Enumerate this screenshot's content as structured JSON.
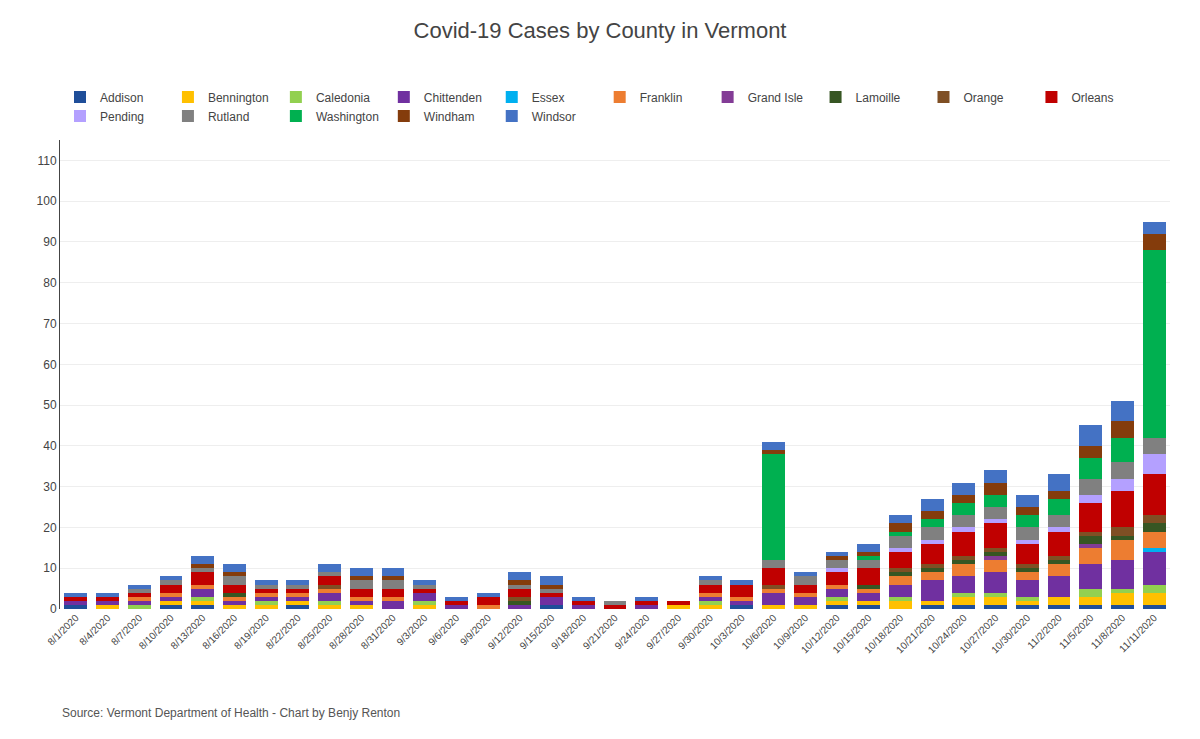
{
  "chart_data": {
    "type": "bar",
    "title": "Covid-19 Cases by County in Vermont",
    "annotations": [
      "Source: Vermont Department of Health - Chart by Benjy Renton"
    ],
    "stacked": true,
    "grid": true,
    "legend": "upper left",
    "categories": [
      "8/1/2020",
      "8/4/2020",
      "8/7/2020",
      "8/10/2020",
      "8/13/2020",
      "8/16/2020",
      "8/19/2020",
      "8/22/2020",
      "8/25/2020",
      "8/28/2020",
      "8/31/2020",
      "9/3/2020",
      "9/6/2020",
      "9/9/2020",
      "9/12/2020",
      "9/15/2020",
      "9/18/2020",
      "9/21/2020",
      "9/24/2020",
      "9/27/2020",
      "9/30/2020",
      "10/3/2020",
      "10/6/2020",
      "10/9/2020",
      "10/12/2020",
      "10/15/2020",
      "10/18/2020",
      "10/21/2020",
      "10/24/2020",
      "10/27/2020",
      "10/30/2020",
      "11/2/2020",
      "11/5/2020",
      "11/8/2020",
      "11/11/2020"
    ],
    "series": [
      {
        "name": "Addison",
        "color": "#1f4e99",
        "values": [
          1,
          0,
          0,
          1,
          1,
          0,
          0,
          1,
          0,
          0,
          0,
          0,
          0,
          0,
          0,
          1,
          0,
          0,
          0,
          0,
          0,
          1,
          0,
          0,
          1,
          1,
          0,
          1,
          1,
          1,
          1,
          1,
          1,
          1,
          1
        ]
      },
      {
        "name": "Bennington",
        "color": "#ffc000",
        "values": [
          0,
          1,
          0,
          1,
          1,
          1,
          1,
          1,
          1,
          1,
          0,
          1,
          0,
          0,
          0,
          0,
          0,
          0,
          0,
          1,
          1,
          0,
          1,
          1,
          1,
          1,
          2,
          1,
          2,
          2,
          1,
          2,
          2,
          3,
          3
        ]
      },
      {
        "name": "Caledonia",
        "color": "#92d050",
        "values": [
          0,
          0,
          1,
          0,
          1,
          0,
          1,
          0,
          1,
          0,
          0,
          1,
          0,
          0,
          0,
          0,
          0,
          0,
          0,
          0,
          1,
          0,
          0,
          0,
          1,
          0,
          1,
          0,
          1,
          1,
          1,
          0,
          2,
          1,
          2
        ]
      },
      {
        "name": "Chittenden",
        "color": "#7030a0",
        "values": [
          1,
          1,
          1,
          1,
          2,
          1,
          1,
          1,
          2,
          1,
          2,
          2,
          1,
          0,
          1,
          2,
          1,
          0,
          1,
          0,
          1,
          1,
          3,
          2,
          2,
          2,
          3,
          5,
          4,
          5,
          4,
          5,
          6,
          7,
          8
        ]
      },
      {
        "name": "Essex",
        "color": "#00b0f0",
        "values": [
          0,
          0,
          0,
          0,
          0,
          0,
          0,
          0,
          0,
          0,
          0,
          0,
          0,
          0,
          0,
          0,
          0,
          0,
          0,
          0,
          0,
          0,
          0,
          0,
          0,
          0,
          0,
          0,
          0,
          0,
          0,
          0,
          0,
          0,
          1
        ]
      },
      {
        "name": "Franklin",
        "color": "#ed7d31",
        "values": [
          0,
          0,
          1,
          1,
          1,
          1,
          1,
          1,
          1,
          1,
          1,
          0,
          0,
          1,
          0,
          0,
          0,
          0,
          0,
          0,
          1,
          1,
          1,
          1,
          1,
          1,
          2,
          2,
          3,
          3,
          2,
          3,
          4,
          5,
          4
        ]
      },
      {
        "name": "Grand Isle",
        "color": "#833c96",
        "values": [
          0,
          0,
          0,
          0,
          0,
          0,
          0,
          0,
          0,
          0,
          0,
          0,
          0,
          0,
          0,
          0,
          0,
          0,
          0,
          0,
          0,
          0,
          0,
          0,
          0,
          0,
          0,
          0,
          0,
          1,
          0,
          0,
          1,
          0,
          0
        ]
      },
      {
        "name": "Lamoille",
        "color": "#375623",
        "values": [
          0,
          0,
          0,
          0,
          0,
          1,
          0,
          0,
          0,
          0,
          0,
          0,
          0,
          0,
          1,
          0,
          0,
          0,
          0,
          0,
          0,
          0,
          0,
          0,
          0,
          1,
          1,
          1,
          1,
          1,
          1,
          1,
          2,
          1,
          2
        ]
      },
      {
        "name": "Orange",
        "color": "#7f4f24",
        "values": [
          0,
          0,
          0,
          0,
          0,
          0,
          0,
          0,
          1,
          0,
          0,
          0,
          0,
          0,
          1,
          0,
          0,
          0,
          0,
          0,
          0,
          0,
          1,
          0,
          0,
          0,
          1,
          1,
          1,
          1,
          1,
          1,
          1,
          2,
          2
        ]
      },
      {
        "name": "Orleans",
        "color": "#c00000",
        "values": [
          1,
          1,
          1,
          2,
          3,
          2,
          1,
          1,
          2,
          2,
          2,
          1,
          1,
          2,
          2,
          1,
          1,
          1,
          1,
          1,
          2,
          3,
          4,
          2,
          3,
          4,
          4,
          5,
          6,
          6,
          5,
          6,
          7,
          9,
          10
        ]
      },
      {
        "name": "Pending",
        "color": "#b4a0ff",
        "values": [
          0,
          0,
          0,
          0,
          0,
          0,
          0,
          0,
          0,
          0,
          0,
          0,
          0,
          0,
          0,
          0,
          0,
          0,
          0,
          0,
          0,
          0,
          0,
          0,
          1,
          0,
          1,
          1,
          1,
          1,
          1,
          1,
          2,
          3,
          5
        ]
      },
      {
        "name": "Rutland",
        "color": "#808080",
        "values": [
          0,
          0,
          1,
          1,
          1,
          2,
          1,
          1,
          1,
          2,
          2,
          1,
          0,
          0,
          1,
          1,
          0,
          1,
          0,
          0,
          1,
          0,
          2,
          2,
          2,
          2,
          3,
          3,
          3,
          3,
          3,
          3,
          4,
          4,
          4
        ]
      },
      {
        "name": "Washington",
        "color": "#00b050",
        "values": [
          0,
          0,
          0,
          0,
          0,
          0,
          0,
          0,
          0,
          0,
          0,
          0,
          0,
          0,
          0,
          0,
          0,
          0,
          0,
          0,
          0,
          0,
          26,
          0,
          0,
          1,
          1,
          2,
          3,
          3,
          3,
          4,
          5,
          6,
          46
        ]
      },
      {
        "name": "Windham",
        "color": "#843c0c",
        "values": [
          0,
          0,
          0,
          0,
          1,
          1,
          0,
          0,
          0,
          1,
          1,
          0,
          0,
          0,
          1,
          1,
          0,
          0,
          0,
          0,
          0,
          0,
          1,
          0,
          1,
          1,
          2,
          2,
          2,
          3,
          2,
          2,
          3,
          4,
          4
        ]
      },
      {
        "name": "Windsor",
        "color": "#4472c4",
        "values": [
          1,
          1,
          1,
          1,
          2,
          2,
          1,
          1,
          2,
          2,
          2,
          1,
          1,
          1,
          2,
          2,
          1,
          0,
          1,
          0,
          1,
          1,
          2,
          1,
          1,
          2,
          2,
          3,
          3,
          3,
          3,
          4,
          5,
          5,
          3
        ]
      }
    ],
    "ylim": [
      0,
      115
    ],
    "yticks": [
      0,
      10,
      20,
      30,
      40,
      50,
      60,
      70,
      80,
      90,
      100,
      110
    ]
  }
}
